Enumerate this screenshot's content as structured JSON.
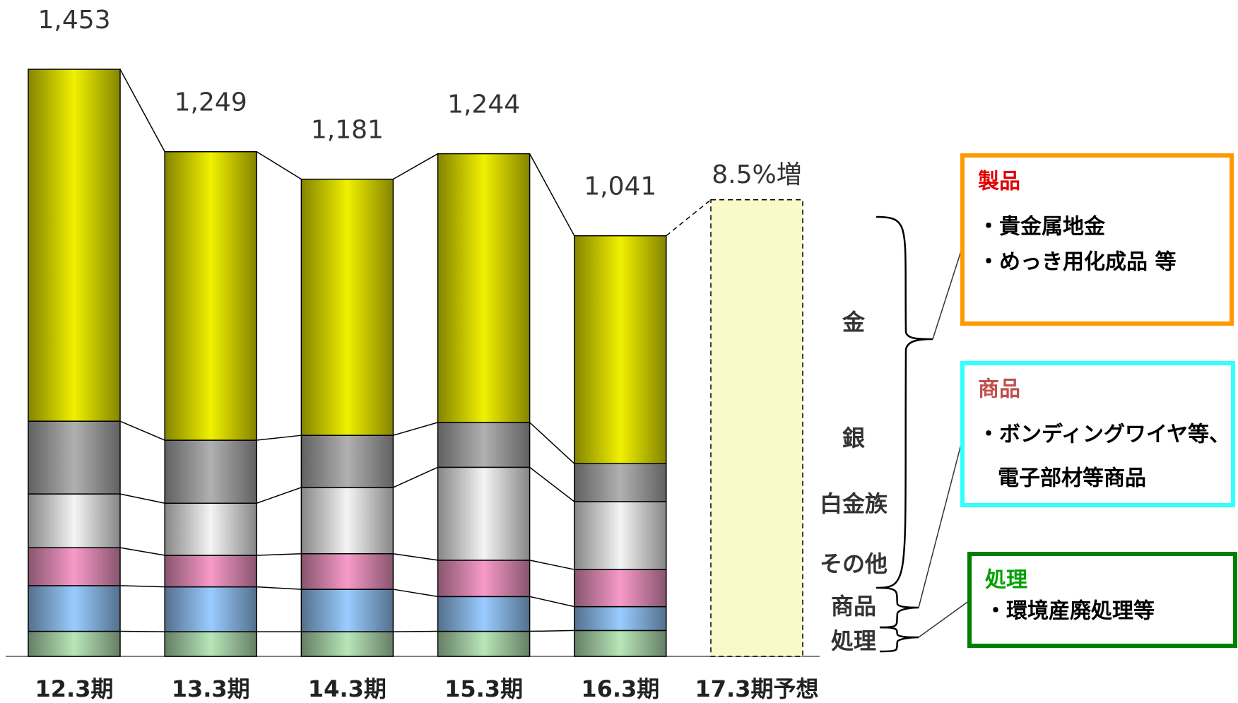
{
  "chart_data": {
    "type": "stacked_bar",
    "categories": [
      "12.3期",
      "13.3期",
      "14.3期",
      "15.3期",
      "16.3期",
      "17.3期予想"
    ],
    "series": [
      {
        "name": "処理",
        "color": "#b8e6b8",
        "values": [
          62,
          61,
          61,
          62,
          64,
          null
        ]
      },
      {
        "name": "商品",
        "color": "#99ccff",
        "values": [
          113,
          111,
          105,
          86,
          59,
          null
        ]
      },
      {
        "name": "その他",
        "color": "#f79ac8",
        "values": [
          94,
          78,
          88,
          90,
          92,
          null
        ]
      },
      {
        "name": "白金族",
        "color": "#f4f4f4",
        "values": [
          133,
          129,
          164,
          230,
          168,
          null
        ]
      },
      {
        "name": "銀",
        "color": "#b0b0b0",
        "values": [
          180,
          156,
          129,
          111,
          94,
          null
        ]
      },
      {
        "name": "金",
        "color": "#f0f000",
        "values": [
          871,
          714,
          634,
          665,
          564,
          null
        ]
      }
    ],
    "totals": [
      1453,
      1249,
      1181,
      1244,
      1041,
      null
    ],
    "total_labels": [
      "1,453",
      "1,249",
      "1,181",
      "1,244",
      "1,041",
      null
    ],
    "forecast": {
      "value": 1130,
      "label": "8.5%増",
      "color": "#fafac8"
    },
    "ylim": [
      0,
      1600
    ]
  },
  "panels": [
    {
      "title": "製品",
      "title_color": "#e00000",
      "border": "#ff9900",
      "items": [
        "・貴金属地金",
        "・めっき用化成品 等"
      ]
    },
    {
      "title": "商品",
      "title_color": "#c0504d",
      "border": "#33ffff",
      "items": [
        "・ボンディングワイヤ等、",
        "電子部材等商品"
      ]
    },
    {
      "title": "処理",
      "title_color": "#00a000",
      "border": "#008000",
      "items": [
        "・環境産廃処理等"
      ]
    }
  ]
}
